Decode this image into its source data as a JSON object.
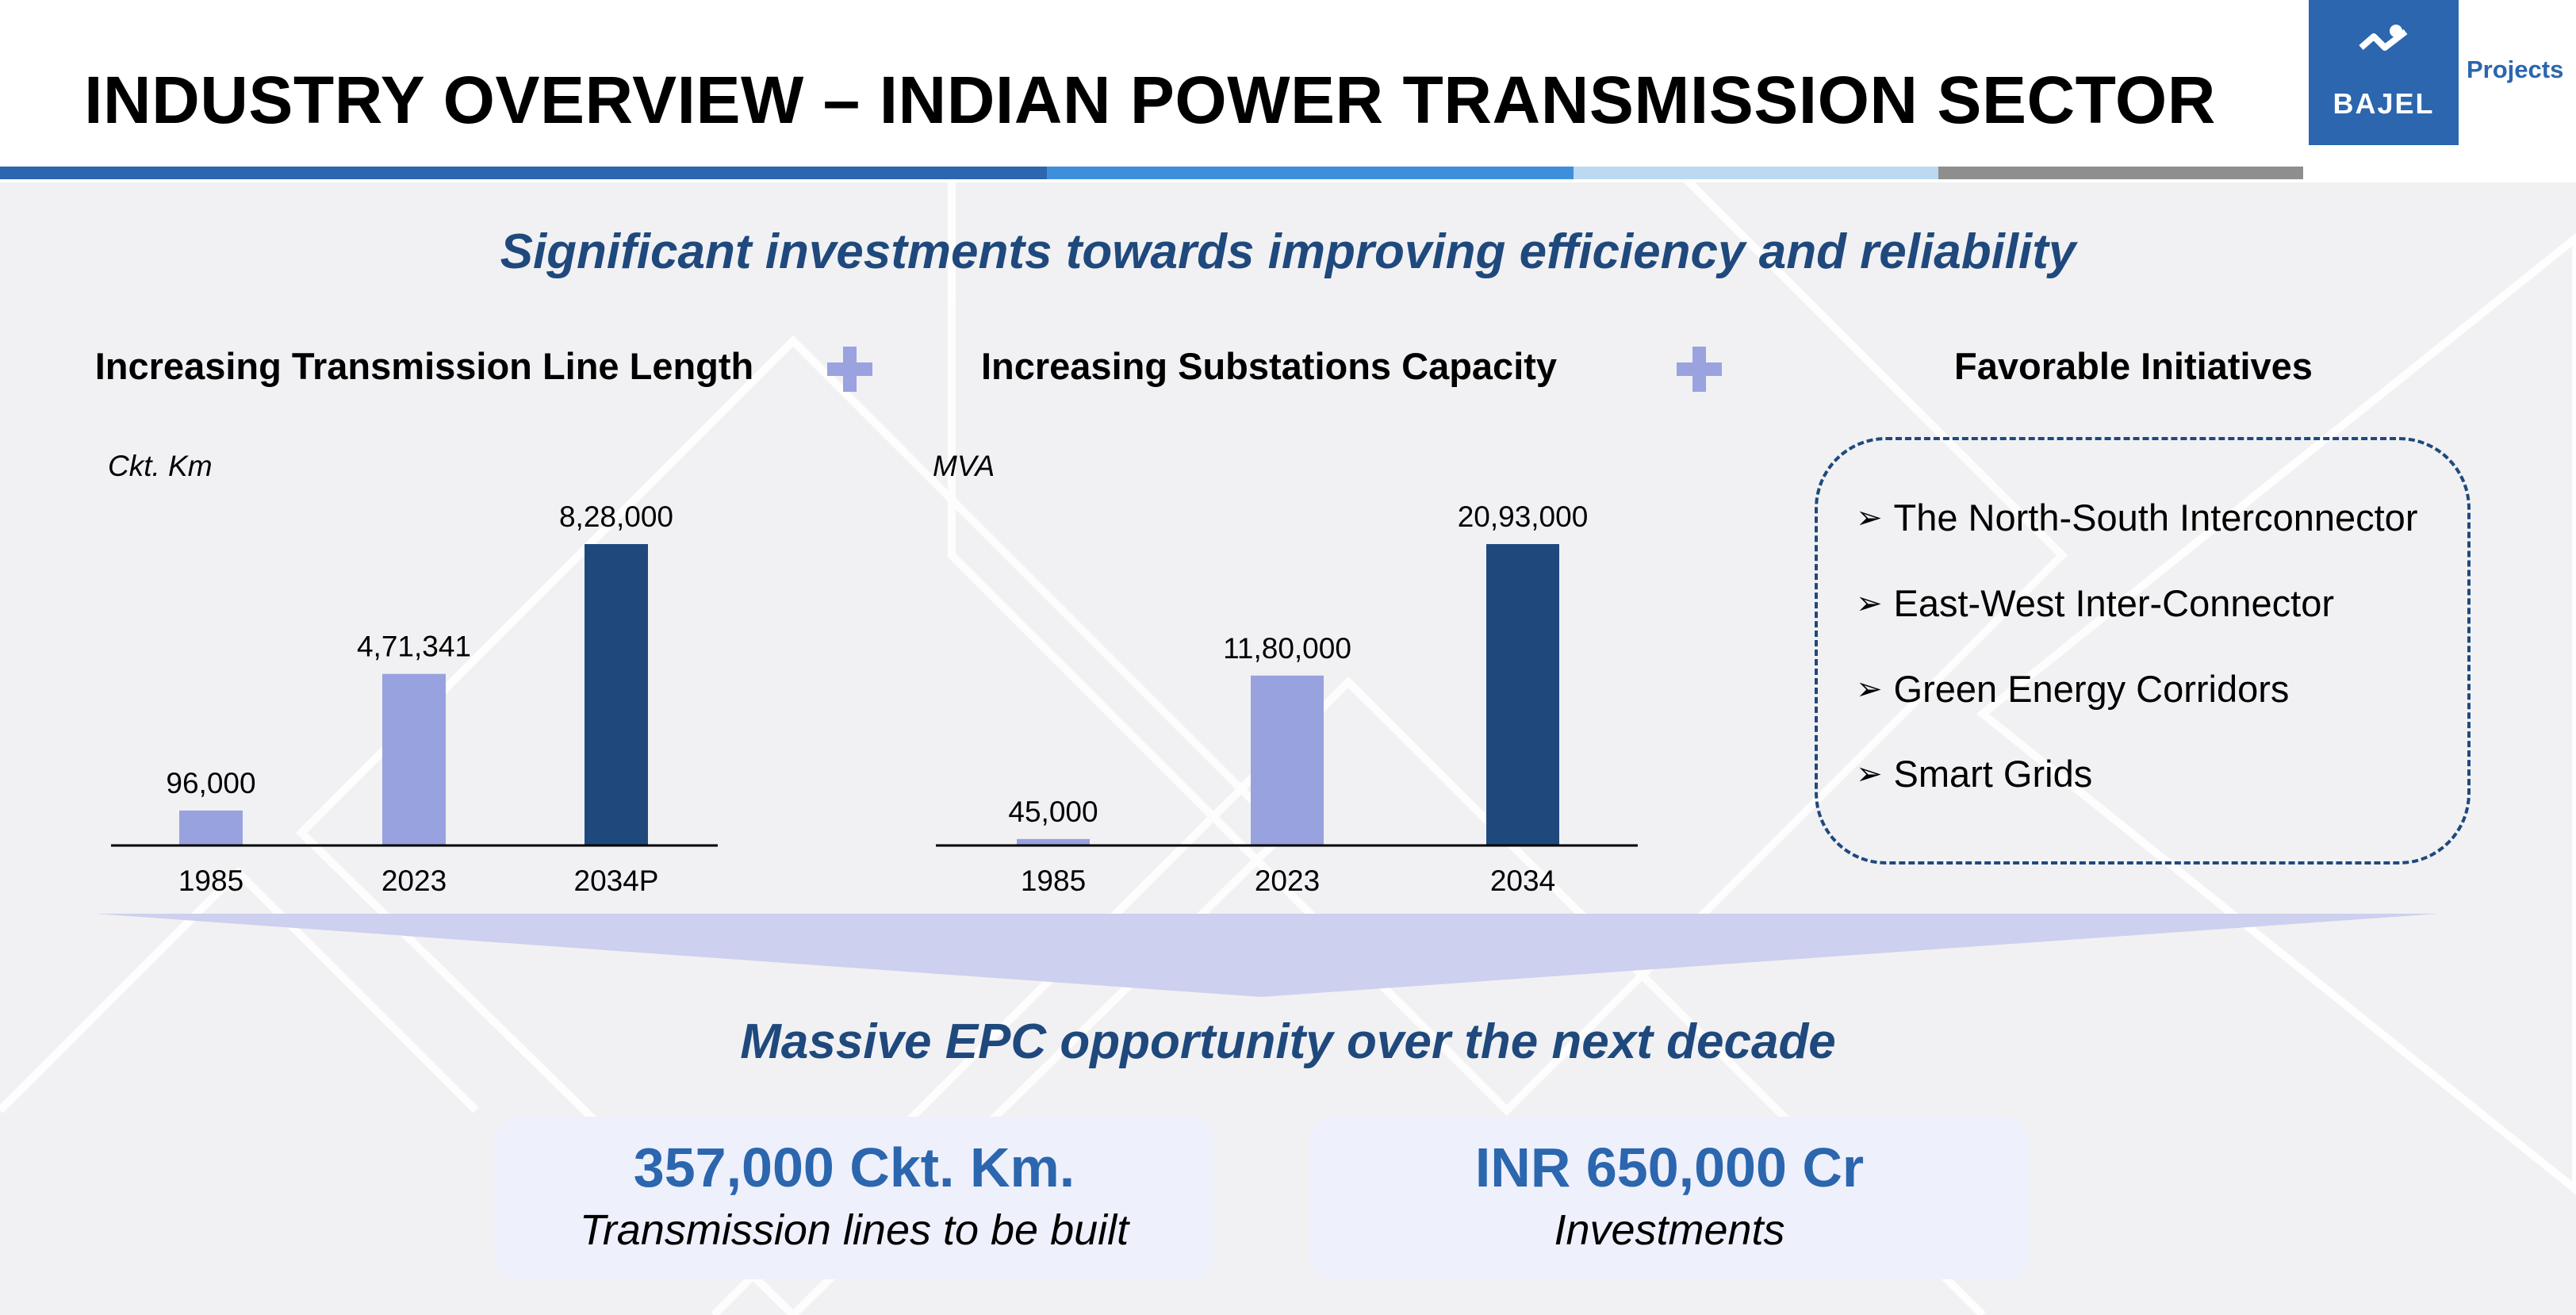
{
  "header": {
    "title": "INDUSTRY OVERVIEW – INDIAN POWER TRANSMISSION SECTOR",
    "logo_word": "BAJEL",
    "logo_suffix": "Projects"
  },
  "subtitle": "Significant investments towards improving efficiency and reliability",
  "colors": {
    "navy": "#1f497d",
    "brand_blue": "#2b66ae",
    "bar_light": "#98a2de",
    "bar_dark": "#1f497d",
    "stripe_blue": "#2b66ae",
    "stripe_mid": "#3d8fdb",
    "stripe_light": "#bcd9f1",
    "stripe_grey": "#8e8e8e"
  },
  "columns": {
    "transmission_heading": "Increasing Transmission Line Length",
    "substation_heading": "Increasing Substations Capacity",
    "initiatives_heading": "Favorable Initiatives"
  },
  "chart_data": [
    {
      "type": "bar",
      "unit_label": "Ckt. Km",
      "categories": [
        "1985",
        "2023",
        "2034P"
      ],
      "values": [
        96000,
        471341,
        828000
      ],
      "value_labels": [
        "96,000",
        "4,71,341",
        "8,28,000"
      ],
      "ylim": [
        0,
        828000
      ],
      "bar_colors": [
        "#98a2de",
        "#98a2de",
        "#1f497d"
      ],
      "grid": false
    },
    {
      "type": "bar",
      "unit_label": "MVA",
      "categories": [
        "1985",
        "2023",
        "2034"
      ],
      "values": [
        45000,
        1180000,
        2093000
      ],
      "value_labels": [
        "45,000",
        "11,80,000",
        "20,93,000"
      ],
      "ylim": [
        0,
        2093000
      ],
      "bar_colors": [
        "#98a2de",
        "#98a2de",
        "#1f497d"
      ],
      "grid": false
    }
  ],
  "initiatives": [
    "The North-South Interconnector",
    "East-West Inter-Connector",
    "Green Energy Corridors",
    "Smart Grids"
  ],
  "bullet_glyph": "➢",
  "epc_heading": "Massive EPC opportunity over the next decade",
  "stats": [
    {
      "value": "357,000 Ckt. Km.",
      "label": "Transmission lines to be built"
    },
    {
      "value": "INR 650,000 Cr",
      "label": "Investments"
    }
  ]
}
